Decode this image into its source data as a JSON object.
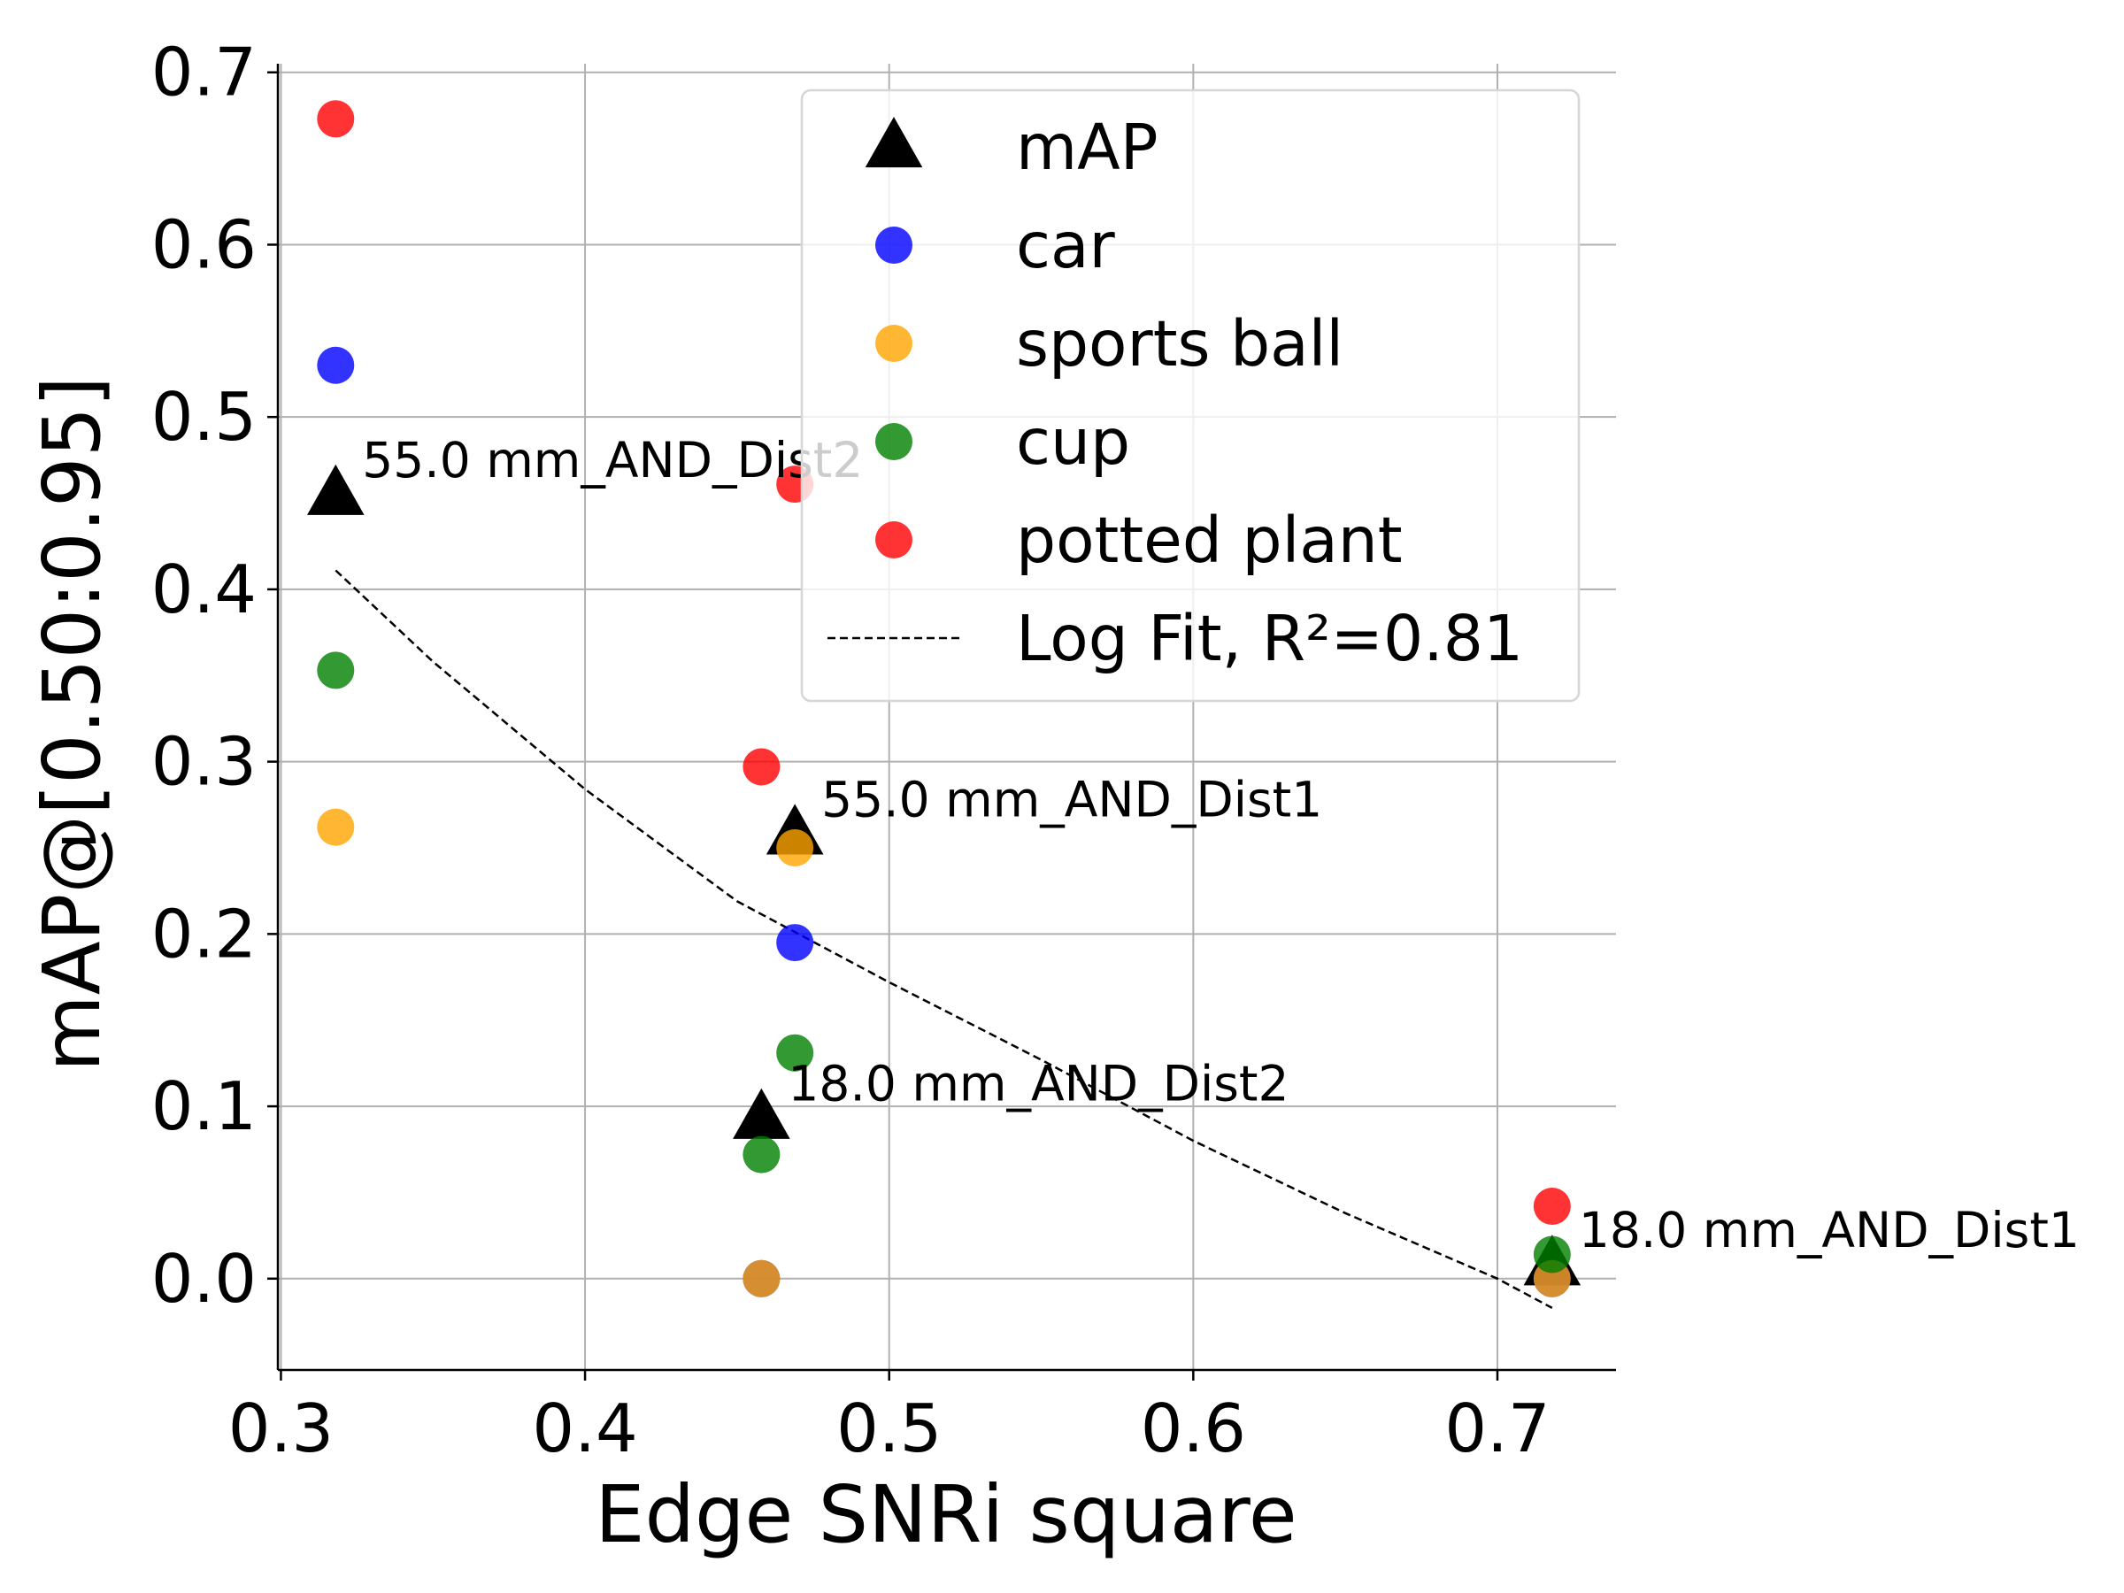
{
  "chart_data": {
    "type": "scatter",
    "xlabel": "Edge SNRi square",
    "ylabel": "mAP@[0.50:0.95]",
    "xlim": [
      0.299,
      0.739
    ],
    "ylim": [
      -0.053,
      0.705
    ],
    "xticks": [
      0.3,
      0.4,
      0.5,
      0.6,
      0.7
    ],
    "xtick_labels": [
      "0.3",
      "0.4",
      "0.5",
      "0.6",
      "0.7"
    ],
    "yticks": [
      0.0,
      0.1,
      0.2,
      0.3,
      0.4,
      0.5,
      0.6,
      0.7
    ],
    "ytick_labels": [
      "0.0",
      "0.1",
      "0.2",
      "0.3",
      "0.4",
      "0.5",
      "0.6",
      "0.7"
    ],
    "grid": true,
    "legend_position": "top-right",
    "series": [
      {
        "name": "mAP",
        "marker": "triangle",
        "color": "#000000",
        "x": [
          0.318,
          0.469,
          0.458,
          0.718
        ],
        "y": [
          0.455,
          0.258,
          0.093,
          0.008
        ]
      },
      {
        "name": "car",
        "marker": "circle",
        "color": "#0000ff",
        "x": [
          0.318,
          0.469,
          0.458,
          0.718
        ],
        "y": [
          0.53,
          0.195,
          0.0,
          0.0
        ]
      },
      {
        "name": "sports ball",
        "marker": "circle",
        "color": "#ffa500",
        "x": [
          0.318,
          0.469,
          0.458,
          0.718
        ],
        "y": [
          0.262,
          0.25,
          0.0,
          0.0
        ]
      },
      {
        "name": "cup",
        "marker": "circle",
        "color": "#008000",
        "x": [
          0.318,
          0.469,
          0.458,
          0.718
        ],
        "y": [
          0.353,
          0.131,
          0.072,
          0.014
        ]
      },
      {
        "name": "potted plant",
        "marker": "circle",
        "color": "#ff0000",
        "x": [
          0.318,
          0.469,
          0.458,
          0.718
        ],
        "y": [
          0.673,
          0.461,
          0.297,
          0.042
        ]
      }
    ],
    "fit": {
      "name": "Log Fit, R²=0.81",
      "style": "dashed",
      "color": "#000000",
      "x": [
        0.318,
        0.35,
        0.4,
        0.45,
        0.5,
        0.55,
        0.6,
        0.65,
        0.7,
        0.718
      ],
      "y": [
        0.411,
        0.358,
        0.284,
        0.219,
        0.172,
        0.127,
        0.08,
        0.038,
        0.0,
        -0.017
      ]
    },
    "annotations": [
      {
        "text": "55.0 mm_AND_Dist2",
        "x": 0.318,
        "y": 0.455
      },
      {
        "text": "55.0 mm_AND_Dist1",
        "x": 0.469,
        "y": 0.258
      },
      {
        "text": "18.0 mm_AND_Dist2",
        "x": 0.458,
        "y": 0.093
      },
      {
        "text": "18.0 mm_AND_Dist1",
        "x": 0.718,
        "y": 0.008
      }
    ]
  }
}
